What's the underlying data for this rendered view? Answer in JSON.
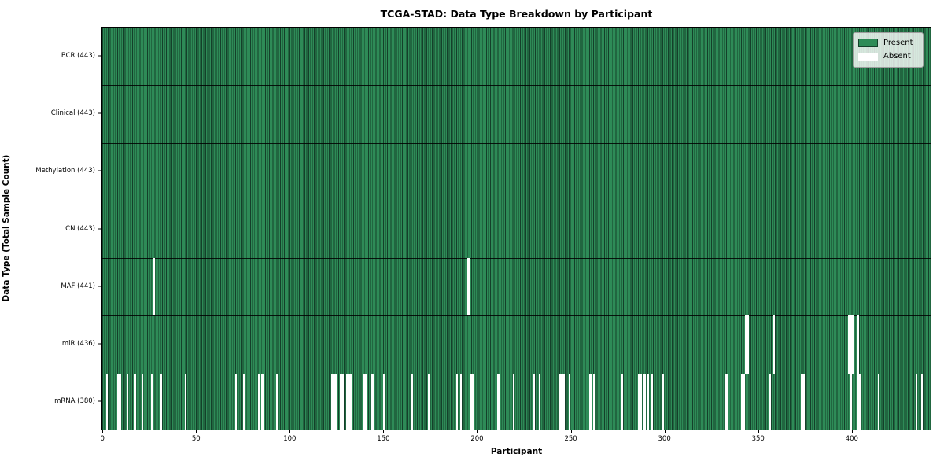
{
  "title": "TCGA-STAD: Data Type Breakdown by Participant",
  "colors": {
    "present": "#2e8b57",
    "present_edge": "#14402a",
    "absent": "#ffffff",
    "separator": "#000000",
    "legend_border": "#9e9e9e"
  },
  "legend": {
    "items": [
      {
        "label": "Present",
        "color": "#2e8b57"
      },
      {
        "label": "Absent",
        "color": "#ffffff"
      }
    ]
  },
  "chart_data": {
    "type": "heatmap",
    "title": "TCGA-STAD: Data Type Breakdown by Participant",
    "xlabel": "Participant",
    "ylabel": "Data Type (Total Sample Count)",
    "n_participants": 443,
    "xlim": [
      -0.5,
      442.5
    ],
    "x_ticks": [
      0,
      50,
      100,
      150,
      200,
      250,
      300,
      350,
      400
    ],
    "legend_entries": [
      "Present",
      "Absent"
    ],
    "legend_position": "upper right",
    "grid": false,
    "cell_values": "present=1, absent=0",
    "rows": [
      {
        "label": "BCR (443)",
        "name": "BCR",
        "present_count": 443,
        "absent_participants": []
      },
      {
        "label": "Clinical (443)",
        "name": "Clinical",
        "present_count": 443,
        "absent_participants": []
      },
      {
        "label": "Methylation (443)",
        "name": "Methylation",
        "present_count": 443,
        "absent_participants": []
      },
      {
        "label": "CN (443)",
        "name": "CN",
        "present_count": 443,
        "absent_participants": []
      },
      {
        "label": "MAF (441)",
        "name": "MAF",
        "present_count": 441,
        "absent_participants": [
          27,
          195
        ]
      },
      {
        "label": "miR (436)",
        "name": "miR",
        "present_count": 436,
        "absent_participants": [
          343,
          344,
          358,
          398,
          399,
          400,
          403
        ]
      },
      {
        "label": "mRNA (380)",
        "name": "mRNA",
        "present_count": 380,
        "absent_participants": [
          2,
          8,
          9,
          13,
          17,
          21,
          26,
          31,
          44,
          71,
          75,
          83,
          85,
          93,
          122,
          123,
          124,
          127,
          128,
          130,
          131,
          132,
          139,
          140,
          143,
          144,
          150,
          165,
          174,
          189,
          191,
          196,
          197,
          211,
          219,
          230,
          233,
          244,
          245,
          246,
          249,
          260,
          262,
          277,
          286,
          287,
          289,
          291,
          293,
          299,
          332,
          333,
          341,
          342,
          356,
          373,
          374,
          399,
          403,
          404,
          414,
          434,
          437
        ]
      }
    ]
  }
}
